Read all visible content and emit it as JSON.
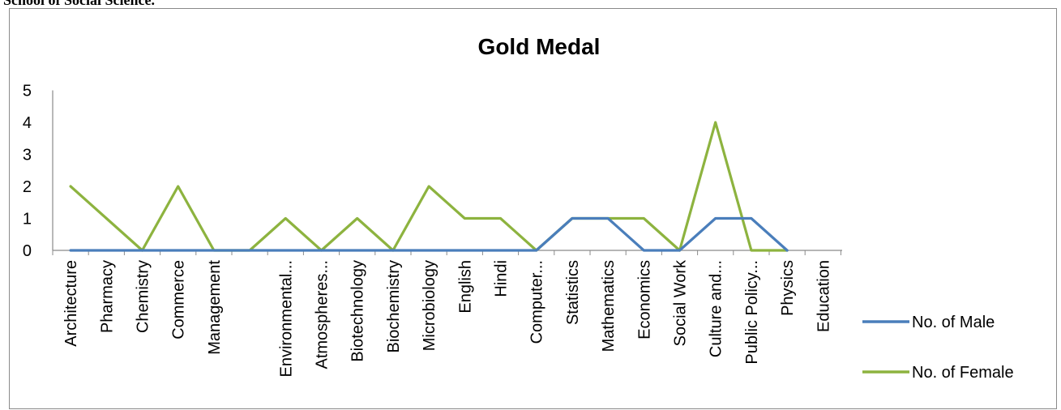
{
  "page": {
    "caption": "School of Social Science."
  },
  "chart_data": {
    "type": "line",
    "title": "Gold Medal",
    "xlabel": "",
    "ylabel": "",
    "ylim": [
      0,
      5
    ],
    "yticks": [
      0,
      1,
      2,
      3,
      4,
      5
    ],
    "grid": false,
    "legend_position": "right",
    "categories": [
      "Architecture",
      "Pharmacy",
      "Chemistry",
      "Commerce",
      "Management",
      "",
      "Environmental...",
      "Atmospheres...",
      "Biotechnology",
      "Biochemistry",
      "Microbiology",
      "English",
      "Hindi",
      "Computer...",
      "Statistics",
      "Mathematics",
      "Economics",
      "Social Work",
      "Culture and...",
      "Public Policy...",
      "Physics",
      "Education"
    ],
    "series": [
      {
        "name": "No. of Male",
        "color": "#4a7ebb",
        "values": [
          0,
          0,
          0,
          0,
          0,
          0,
          0,
          0,
          0,
          0,
          0,
          0,
          0,
          0,
          1,
          1,
          0,
          0,
          1,
          1,
          0,
          null
        ]
      },
      {
        "name": "No. of Female",
        "color": "#8db33f",
        "values": [
          2,
          1,
          0,
          2,
          0,
          0,
          1,
          0,
          1,
          0,
          2,
          1,
          1,
          0,
          1,
          1,
          1,
          0,
          4,
          0,
          0,
          null
        ]
      }
    ]
  }
}
